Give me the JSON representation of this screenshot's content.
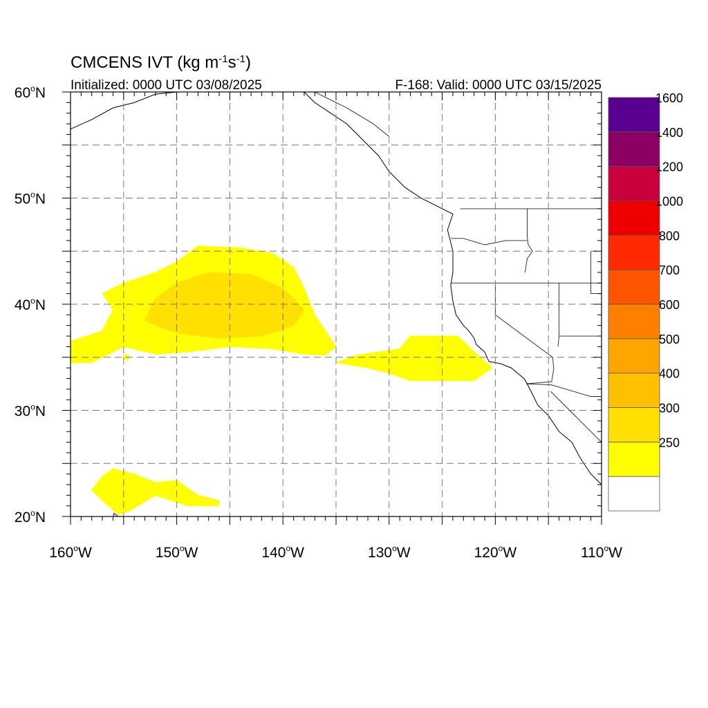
{
  "title": {
    "main": "CMCENS IVT (kg m",
    "sup1": "-1",
    "mid": "s",
    "sup2": "-1",
    "close": ")"
  },
  "subtitle_left": "Initialized: 0000 UTC 03/08/2025",
  "subtitle_right": "F-168: Valid: 0000 UTC 03/15/2025",
  "map": {
    "lon_range": [
      -160,
      -110
    ],
    "lat_range": [
      20,
      60
    ],
    "grid_style": "dashed",
    "lat_ticks": [
      {
        "value": 60,
        "label": "60",
        "hemi": "N"
      },
      {
        "value": 50,
        "label": "50",
        "hemi": "N"
      },
      {
        "value": 40,
        "label": "40",
        "hemi": "N"
      },
      {
        "value": 30,
        "label": "30",
        "hemi": "N"
      },
      {
        "value": 20,
        "label": "20",
        "hemi": "N"
      }
    ],
    "lon_ticks": [
      {
        "value": -160,
        "label": "160",
        "hemi": "W"
      },
      {
        "value": -150,
        "label": "150",
        "hemi": "W"
      },
      {
        "value": -140,
        "label": "140",
        "hemi": "W"
      },
      {
        "value": -130,
        "label": "130",
        "hemi": "W"
      },
      {
        "value": -120,
        "label": "120",
        "hemi": "W"
      },
      {
        "value": -110,
        "label": "110",
        "hemi": "W"
      }
    ],
    "ivt_regions": [
      {
        "level": 250,
        "color": "#ffff00",
        "points": [
          [
            -160,
            36.5
          ],
          [
            -157,
            37.5
          ],
          [
            -156,
            39.5
          ],
          [
            -157,
            41
          ],
          [
            -155,
            42
          ],
          [
            -152,
            43
          ],
          [
            -150,
            44
          ],
          [
            -148,
            45.5
          ],
          [
            -144,
            45.3
          ],
          [
            -141,
            44.8
          ],
          [
            -139,
            43.5
          ],
          [
            -138,
            41.5
          ],
          [
            -137,
            39
          ],
          [
            -136,
            37.5
          ],
          [
            -135,
            36
          ],
          [
            -136,
            35.2
          ],
          [
            -138,
            35.3
          ],
          [
            -141,
            35.8
          ],
          [
            -145,
            36
          ],
          [
            -149,
            35.5
          ],
          [
            -152,
            35.3
          ],
          [
            -155,
            36
          ],
          [
            -158,
            34.5
          ],
          [
            -160,
            34.5
          ]
        ]
      },
      {
        "level": 300,
        "color": "#ffe000",
        "points": [
          [
            -153,
            38.5
          ],
          [
            -152,
            40.5
          ],
          [
            -150,
            42
          ],
          [
            -147,
            43
          ],
          [
            -143,
            42.8
          ],
          [
            -140,
            41.5
          ],
          [
            -138,
            39.5
          ],
          [
            -139,
            38
          ],
          [
            -142,
            37
          ],
          [
            -146,
            36.8
          ],
          [
            -150,
            37.3
          ],
          [
            -152,
            38
          ]
        ]
      },
      {
        "level": 250,
        "color": "#ffff00",
        "points": [
          [
            -135,
            34.5
          ],
          [
            -133,
            35.2
          ],
          [
            -129,
            35.8
          ],
          [
            -128,
            37
          ],
          [
            -123.5,
            37
          ],
          [
            -122.5,
            36
          ],
          [
            -121,
            34.6
          ],
          [
            -120.3,
            34
          ],
          [
            -122,
            32.8
          ],
          [
            -124.5,
            32.8
          ],
          [
            -128,
            32.8
          ],
          [
            -130,
            33.5
          ],
          [
            -132,
            34
          ]
        ]
      },
      {
        "level": 250,
        "color": "#ffff00",
        "points": [
          [
            -158,
            22.5
          ],
          [
            -157,
            23.8
          ],
          [
            -156,
            24.5
          ],
          [
            -154,
            24
          ],
          [
            -152,
            23.2
          ],
          [
            -150,
            23.4
          ],
          [
            -148,
            22
          ],
          [
            -146,
            21.5
          ],
          [
            -146,
            21
          ],
          [
            -149,
            21
          ],
          [
            -152,
            22
          ],
          [
            -154.5,
            20.5
          ],
          [
            -155.5,
            20.2
          ],
          [
            -157,
            21.5
          ]
        ]
      },
      {
        "level": 250,
        "color": "#ffff00",
        "points": [
          [
            -155,
            35.2
          ],
          [
            -154.5,
            35.2
          ],
          [
            -154.5,
            34.8
          ],
          [
            -155,
            34.8
          ]
        ]
      }
    ],
    "coastline_west": [
      [
        -138,
        60
      ],
      [
        -137,
        59
      ],
      [
        -135.5,
        58
      ],
      [
        -134,
        57
      ],
      [
        -132.5,
        55.5
      ],
      [
        -131,
        54
      ],
      [
        -130,
        52.5
      ],
      [
        -128.5,
        51
      ],
      [
        -127,
        50
      ],
      [
        -125,
        49
      ],
      [
        -124,
        48.5
      ],
      [
        -124.5,
        47
      ],
      [
        -124,
        45
      ],
      [
        -124,
        43
      ],
      [
        -124.2,
        41.8
      ],
      [
        -124,
        40.3
      ],
      [
        -123.7,
        39
      ],
      [
        -123,
        38
      ],
      [
        -122.5,
        37.5
      ],
      [
        -122,
        36.8
      ],
      [
        -121.8,
        36.2
      ],
      [
        -121,
        35.5
      ],
      [
        -120.6,
        34.6
      ],
      [
        -119.5,
        34.4
      ],
      [
        -118.5,
        34
      ],
      [
        -117.3,
        33
      ],
      [
        -117,
        32.5
      ],
      [
        -116.5,
        31.5
      ],
      [
        -116,
        30.5
      ],
      [
        -115,
        29.5
      ],
      [
        -114,
        28
      ],
      [
        -112.8,
        27
      ],
      [
        -112,
        25.5
      ],
      [
        -111,
        24
      ],
      [
        -110,
        23
      ]
    ],
    "coastline_alaska": [
      [
        -160,
        56.5
      ],
      [
        -158,
        57.4
      ],
      [
        -156,
        58.5
      ],
      [
        -154,
        59
      ],
      [
        -152,
        59.8
      ],
      [
        -150,
        60
      ]
    ],
    "borders": [
      [
        [
          -141,
          60
        ],
        [
          -141,
          59.8
        ]
      ],
      [
        [
          -130,
          55.8
        ],
        [
          -131.5,
          57
        ],
        [
          -134,
          58.5
        ],
        [
          -136,
          59.5
        ],
        [
          -137,
          60
        ]
      ],
      [
        [
          -123.3,
          49
        ],
        [
          -110,
          49
        ]
      ],
      [
        [
          -117,
          49
        ],
        [
          -117,
          46.4
        ],
        [
          -116.9,
          45.6
        ],
        [
          -116.5,
          45
        ],
        [
          -117,
          44.3
        ],
        [
          -117.2,
          43
        ]
      ],
      [
        [
          -124.2,
          46.2
        ],
        [
          -123,
          46.2
        ],
        [
          -121,
          45.6
        ],
        [
          -119,
          46
        ],
        [
          -117,
          46
        ]
      ],
      [
        [
          -124.2,
          42
        ],
        [
          -110,
          42
        ]
      ],
      [
        [
          -120,
          42
        ],
        [
          -120,
          39
        ],
        [
          -114.6,
          35
        ],
        [
          -114.5,
          33.9
        ],
        [
          -114.7,
          32.7
        ],
        [
          -117.1,
          32.5
        ]
      ],
      [
        [
          -114,
          42
        ],
        [
          -114,
          37
        ],
        [
          -114.1,
          36
        ]
      ],
      [
        [
          -114,
          37
        ],
        [
          -110,
          37
        ]
      ],
      [
        [
          -111,
          45
        ],
        [
          -111,
          41
        ],
        [
          -110,
          41
        ]
      ],
      [
        [
          -117.1,
          32.5
        ],
        [
          -114.7,
          32.4
        ],
        [
          -111,
          31.3
        ],
        [
          -110,
          31.3
        ]
      ],
      [
        [
          -114.8,
          31.8
        ],
        [
          -113,
          30
        ],
        [
          -112,
          29
        ],
        [
          -111,
          28
        ],
        [
          -110,
          27
        ]
      ]
    ],
    "hawaii": [
      [
        -155.9,
        20.3
      ],
      [
        -155,
        19.6
      ],
      [
        -155.5,
        19.3
      ],
      [
        -156,
        19.8
      ]
    ]
  },
  "colorbar": {
    "levels": [
      {
        "label": "",
        "color": "#ffffff"
      },
      {
        "label": "250",
        "color": "#ffff00"
      },
      {
        "label": "300",
        "color": "#ffe000"
      },
      {
        "label": "400",
        "color": "#ffc000"
      },
      {
        "label": "500",
        "color": "#ffa500"
      },
      {
        "label": "600",
        "color": "#ff8000"
      },
      {
        "label": "700",
        "color": "#ff5500"
      },
      {
        "label": "800",
        "color": "#ff2a00"
      },
      {
        "label": "1000",
        "color": "#ee0000"
      },
      {
        "label": "1200",
        "color": "#c8003c"
      },
      {
        "label": "1400",
        "color": "#8c0064"
      },
      {
        "label": "1600",
        "color": "#5a0090"
      }
    ]
  }
}
